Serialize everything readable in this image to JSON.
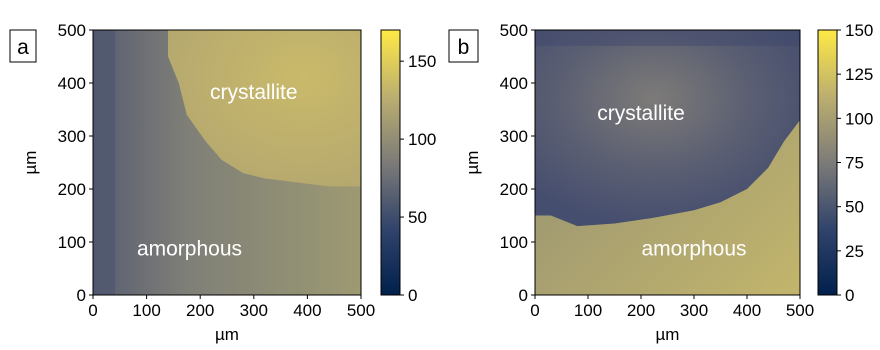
{
  "chart_data": [
    {
      "type": "heatmap",
      "panel_label": "a",
      "xlabel": "µm",
      "ylabel": "µm",
      "xlim": [
        0,
        500
      ],
      "ylim": [
        0,
        500
      ],
      "xticks": [
        "0",
        "100",
        "200",
        "300",
        "400",
        "500"
      ],
      "yticks": [
        "0",
        "100",
        "200",
        "300",
        "400",
        "500"
      ],
      "annotations": [
        {
          "text": "crystallite",
          "x": 300,
          "y": 370
        },
        {
          "text": "amorphous",
          "x": 180,
          "y": 75
        }
      ],
      "colorbar": {
        "min": 0,
        "max": 170,
        "colormap": "cividis",
        "tick_values": [
          0,
          50,
          100,
          150
        ],
        "ticks": [
          "0",
          "50",
          "100",
          "150"
        ]
      },
      "regions": [
        {
          "name": "crystallite",
          "value": 118
        },
        {
          "name": "amorphous",
          "value": 72
        }
      ]
    },
    {
      "type": "heatmap",
      "panel_label": "b",
      "xlabel": "µm",
      "ylabel": "µm",
      "xlim": [
        0,
        500
      ],
      "ylim": [
        0,
        500
      ],
      "xticks": [
        "0",
        "100",
        "200",
        "300",
        "400",
        "500"
      ],
      "yticks": [
        "0",
        "100",
        "200",
        "300",
        "400",
        "500"
      ],
      "annotations": [
        {
          "text": "crystallite",
          "x": 200,
          "y": 330
        },
        {
          "text": "amorphous",
          "x": 300,
          "y": 75
        }
      ],
      "colorbar": {
        "min": 0,
        "max": 150,
        "colormap": "cividis",
        "tick_values": [
          0,
          25,
          50,
          75,
          100,
          125,
          150
        ],
        "ticks": [
          "0",
          "25",
          "50",
          "75",
          "100",
          "125",
          "150"
        ]
      },
      "regions": [
        {
          "name": "crystallite",
          "value": 60
        },
        {
          "name": "amorphous",
          "value": 112
        }
      ]
    }
  ]
}
